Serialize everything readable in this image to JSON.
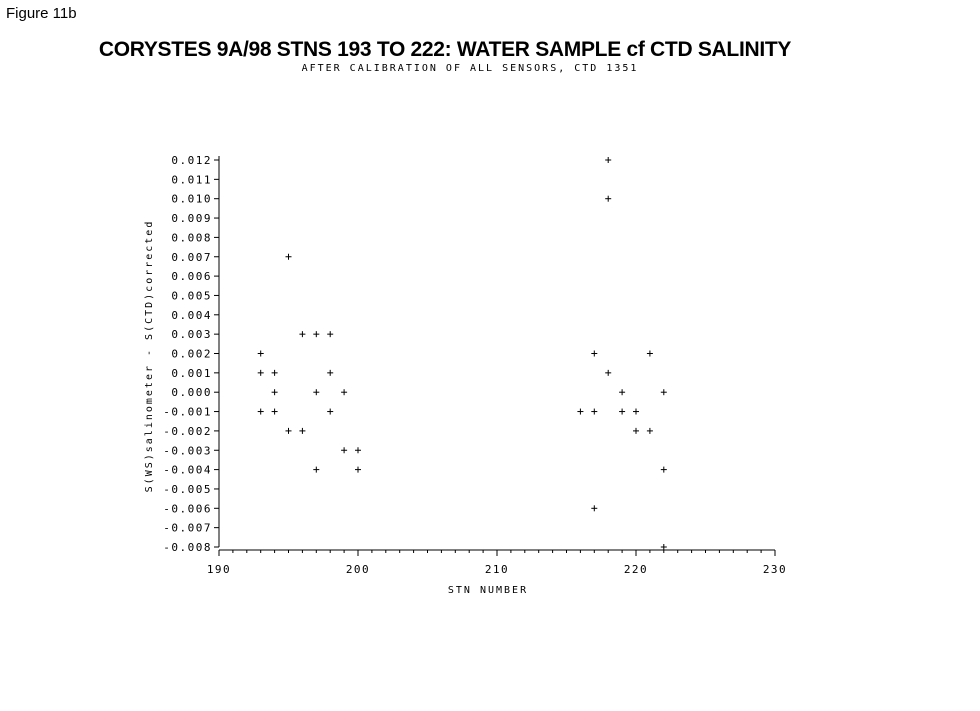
{
  "figure_label": "Figure 11b",
  "chart_data": {
    "type": "scatter",
    "title": "CORYSTES 9A/98 STNS 193 TO 222: WATER SAMPLE cf CTD SALINITY",
    "subtitle": "AFTER CALIBRATION OF ALL SENSORS, CTD 1351",
    "xlabel": "STN NUMBER",
    "ylabel": "S(WS)salinometer - S(CTD)corrected",
    "xlim": [
      190,
      230
    ],
    "ylim": [
      -0.008,
      0.012
    ],
    "x_ticks": [
      190,
      200,
      210,
      220,
      230
    ],
    "y_ticks": [
      "0.012",
      "0.011",
      "0.010",
      "0.009",
      "0.008",
      "0.007",
      "0.006",
      "0.005",
      "0.004",
      "0.003",
      "0.002",
      "0.001",
      "0.000",
      "-0.001",
      "-0.002",
      "-0.003",
      "-0.004",
      "-0.005",
      "-0.006",
      "-0.007",
      "-0.008"
    ],
    "marker": "+",
    "grid": false,
    "points": [
      [
        193,
        0.002
      ],
      [
        193,
        0.001
      ],
      [
        193,
        -0.001
      ],
      [
        194,
        0.001
      ],
      [
        194,
        0.0
      ],
      [
        194,
        -0.001
      ],
      [
        195,
        0.007
      ],
      [
        195,
        -0.002
      ],
      [
        196,
        0.003
      ],
      [
        196,
        -0.002
      ],
      [
        197,
        0.003
      ],
      [
        197,
        0.0
      ],
      [
        197,
        -0.004
      ],
      [
        198,
        0.003
      ],
      [
        198,
        0.001
      ],
      [
        198,
        -0.001
      ],
      [
        199,
        0.0
      ],
      [
        199,
        -0.003
      ],
      [
        200,
        -0.003
      ],
      [
        200,
        -0.004
      ],
      [
        216,
        -0.001
      ],
      [
        217,
        0.002
      ],
      [
        217,
        -0.001
      ],
      [
        217,
        -0.006
      ],
      [
        218,
        0.012
      ],
      [
        218,
        0.01
      ],
      [
        218,
        0.001
      ],
      [
        219,
        0.0
      ],
      [
        219,
        -0.001
      ],
      [
        220,
        -0.001
      ],
      [
        220,
        -0.002
      ],
      [
        221,
        0.002
      ],
      [
        221,
        -0.002
      ],
      [
        222,
        0.0
      ],
      [
        222,
        -0.004
      ],
      [
        222,
        -0.008
      ]
    ]
  }
}
